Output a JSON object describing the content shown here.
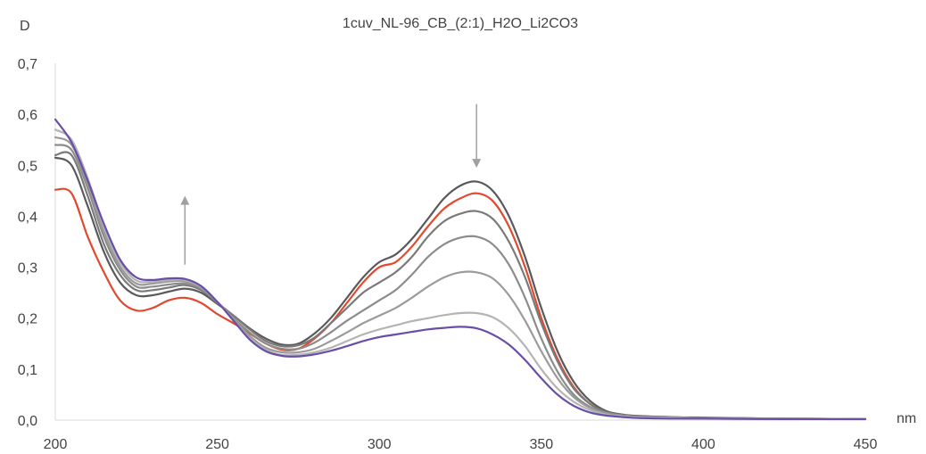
{
  "chart_data": {
    "type": "line",
    "title": "1cuv_NL-96_CB_(2:1)_H2O_Li2CO3",
    "xlabel": "nm",
    "ylabel": "D",
    "xlim": [
      200,
      450
    ],
    "ylim": [
      0,
      0.7
    ],
    "xticks": [
      "200",
      "250",
      "300",
      "350",
      "400",
      "450"
    ],
    "yticks": [
      "0,0",
      "0,1",
      "0,2",
      "0,3",
      "0,4",
      "0,5",
      "0,6",
      "0,7"
    ],
    "grid": false,
    "legend": "none",
    "x": [
      200,
      205,
      210,
      215,
      220,
      225,
      230,
      235,
      240,
      245,
      250,
      255,
      260,
      265,
      270,
      275,
      280,
      285,
      290,
      295,
      300,
      305,
      310,
      315,
      320,
      325,
      330,
      335,
      340,
      345,
      350,
      355,
      360,
      365,
      370,
      375,
      380,
      390,
      400,
      425,
      450
    ],
    "series": [
      {
        "color": "#e04a2e",
        "values": [
          0.452,
          0.445,
          0.36,
          0.29,
          0.235,
          0.215,
          0.22,
          0.235,
          0.24,
          0.23,
          0.208,
          0.19,
          0.17,
          0.15,
          0.138,
          0.14,
          0.16,
          0.19,
          0.23,
          0.27,
          0.3,
          0.31,
          0.34,
          0.38,
          0.415,
          0.435,
          0.445,
          0.43,
          0.38,
          0.3,
          0.2,
          0.12,
          0.065,
          0.032,
          0.016,
          0.01,
          0.007,
          0.005,
          0.004,
          0.003,
          0.002
        ]
      },
      {
        "color": "#5a5a5a",
        "values": [
          0.515,
          0.5,
          0.42,
          0.33,
          0.27,
          0.245,
          0.245,
          0.252,
          0.258,
          0.25,
          0.228,
          0.205,
          0.18,
          0.16,
          0.148,
          0.15,
          0.17,
          0.2,
          0.24,
          0.28,
          0.31,
          0.325,
          0.355,
          0.395,
          0.435,
          0.46,
          0.468,
          0.45,
          0.4,
          0.32,
          0.22,
          0.135,
          0.075,
          0.038,
          0.018,
          0.011,
          0.008,
          0.006,
          0.005,
          0.003,
          0.002
        ]
      },
      {
        "color": "#7a7a7a",
        "values": [
          0.52,
          0.52,
          0.44,
          0.345,
          0.285,
          0.255,
          0.255,
          0.26,
          0.265,
          0.255,
          0.23,
          0.205,
          0.178,
          0.155,
          0.145,
          0.147,
          0.162,
          0.19,
          0.22,
          0.25,
          0.27,
          0.29,
          0.32,
          0.36,
          0.39,
          0.405,
          0.41,
          0.395,
          0.35,
          0.28,
          0.19,
          0.115,
          0.062,
          0.032,
          0.016,
          0.01,
          0.007,
          0.005,
          0.004,
          0.003,
          0.002
        ]
      },
      {
        "color": "#8c8c8c",
        "values": [
          0.54,
          0.53,
          0.455,
          0.36,
          0.295,
          0.262,
          0.262,
          0.266,
          0.268,
          0.258,
          0.232,
          0.2,
          0.172,
          0.15,
          0.14,
          0.14,
          0.152,
          0.172,
          0.195,
          0.215,
          0.235,
          0.255,
          0.285,
          0.32,
          0.345,
          0.358,
          0.36,
          0.345,
          0.305,
          0.24,
          0.16,
          0.095,
          0.05,
          0.026,
          0.014,
          0.009,
          0.006,
          0.005,
          0.004,
          0.003,
          0.002
        ]
      },
      {
        "color": "#9b9b9b",
        "values": [
          0.555,
          0.54,
          0.465,
          0.37,
          0.302,
          0.268,
          0.268,
          0.272,
          0.272,
          0.26,
          0.232,
          0.198,
          0.165,
          0.142,
          0.133,
          0.133,
          0.14,
          0.155,
          0.172,
          0.19,
          0.205,
          0.22,
          0.24,
          0.262,
          0.28,
          0.29,
          0.29,
          0.278,
          0.245,
          0.195,
          0.135,
          0.082,
          0.045,
          0.024,
          0.013,
          0.008,
          0.006,
          0.005,
          0.004,
          0.003,
          0.002
        ]
      },
      {
        "color": "#b4b4b4",
        "values": [
          0.57,
          0.55,
          0.475,
          0.38,
          0.31,
          0.274,
          0.272,
          0.275,
          0.275,
          0.262,
          0.232,
          0.195,
          0.16,
          0.138,
          0.128,
          0.128,
          0.133,
          0.142,
          0.155,
          0.168,
          0.178,
          0.186,
          0.194,
          0.2,
          0.206,
          0.21,
          0.21,
          0.202,
          0.18,
          0.145,
          0.1,
          0.062,
          0.036,
          0.02,
          0.011,
          0.007,
          0.005,
          0.004,
          0.003,
          0.002,
          0.002
        ]
      },
      {
        "color": "#6a4fa8",
        "values": [
          0.59,
          0.545,
          0.47,
          0.385,
          0.315,
          0.28,
          0.275,
          0.278,
          0.277,
          0.263,
          0.232,
          0.195,
          0.158,
          0.135,
          0.126,
          0.125,
          0.129,
          0.136,
          0.145,
          0.155,
          0.163,
          0.168,
          0.173,
          0.178,
          0.181,
          0.183,
          0.18,
          0.168,
          0.148,
          0.118,
          0.082,
          0.05,
          0.028,
          0.015,
          0.009,
          0.006,
          0.004,
          0.003,
          0.003,
          0.002,
          0.002
        ]
      }
    ],
    "annotations": [
      {
        "type": "arrow",
        "direction": "up",
        "x": 240,
        "y_from": 0.305,
        "y_to": 0.44,
        "color": "#a0a0a0"
      },
      {
        "type": "arrow",
        "direction": "down",
        "x": 330,
        "y_from": 0.62,
        "y_to": 0.495,
        "color": "#a0a0a0"
      }
    ]
  }
}
